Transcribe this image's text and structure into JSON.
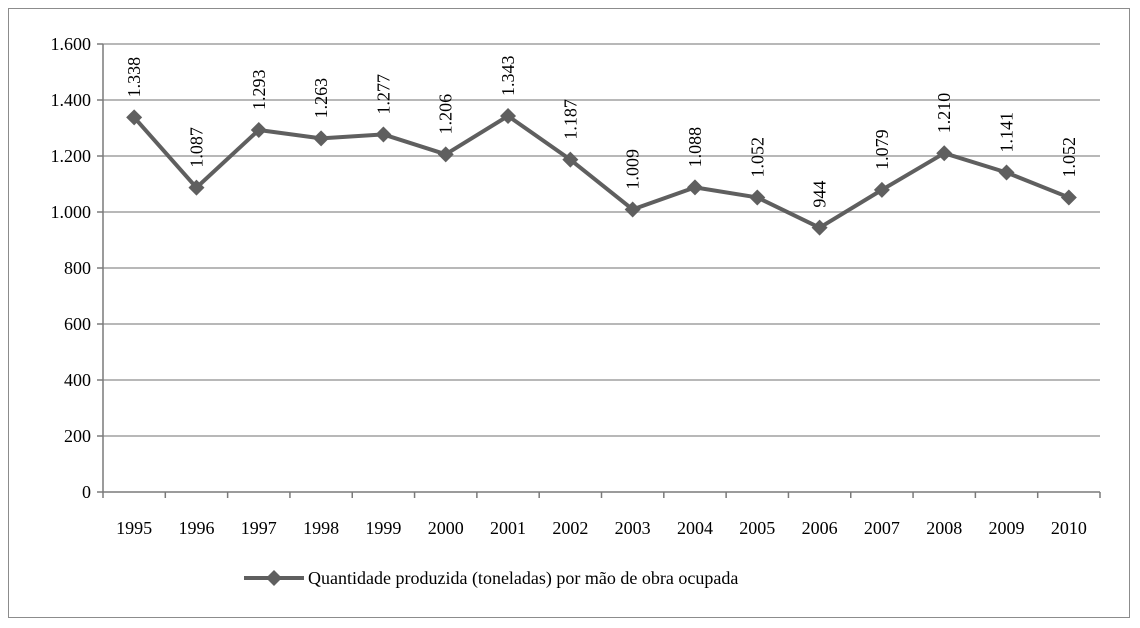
{
  "chart_data": {
    "type": "line",
    "title": "",
    "xlabel": "",
    "ylabel": "",
    "ylim": [
      0,
      1600
    ],
    "y_ticks": [
      0,
      200,
      400,
      600,
      800,
      1000,
      1200,
      1400,
      1600
    ],
    "y_tick_labels": [
      "0",
      "200",
      "400",
      "600",
      "800",
      "1.000",
      "1.200",
      "1.400",
      "1.600"
    ],
    "grid": true,
    "legend_position": "bottom",
    "categories": [
      "1995",
      "1996",
      "1997",
      "1998",
      "1999",
      "2000",
      "2001",
      "2002",
      "2003",
      "2004",
      "2005",
      "2006",
      "2007",
      "2008",
      "2009",
      "2010"
    ],
    "series": [
      {
        "name": "Quantidade produzida (toneladas) por mão de obra ocupada",
        "color": "#5f5f5f",
        "marker": "diamond",
        "values": [
          1338,
          1087,
          1293,
          1263,
          1277,
          1206,
          1343,
          1187,
          1009,
          1088,
          1052,
          944,
          1079,
          1210,
          1141,
          1052
        ],
        "labels": [
          "1.338",
          "1.087",
          "1.293",
          "1.263",
          "1.277",
          "1.206",
          "1.343",
          "1.187",
          "1.009",
          "1.088",
          "1.052",
          "944",
          "1.079",
          "1.210",
          "1.141",
          "1.052"
        ]
      }
    ]
  }
}
